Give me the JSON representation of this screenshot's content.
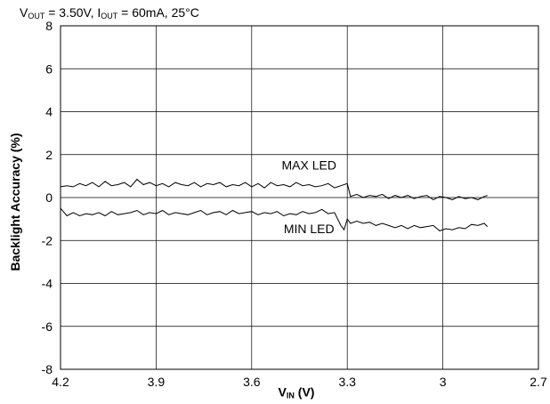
{
  "conditions": {
    "v": "V",
    "v_sub": "OUT",
    "v_rest": " = 3.50V, ",
    "i": "I",
    "i_sub": "OUT",
    "i_rest": " = 60mA, 25°C"
  },
  "axis": {
    "ylabel": "Backlight Accuracy (%)",
    "xlabel_main": "V",
    "xlabel_sub": "IN",
    "xlabel_rest": " (V)"
  },
  "chart_data": {
    "type": "line",
    "title": "",
    "xlabel": "VIN (V)",
    "ylabel": "Backlight Accuracy (%)",
    "xlim": [
      4.2,
      2.7
    ],
    "ylim": [
      -8,
      8
    ],
    "x_reversed": true,
    "grid": true,
    "xticks": [
      "4.2",
      "3.9",
      "3.6",
      "3.3",
      "3",
      "2.7"
    ],
    "xtick_values": [
      4.2,
      3.9,
      3.6,
      3.3,
      3.0,
      2.7
    ],
    "yticks": [
      "8",
      "6",
      "4",
      "2",
      "0",
      "-2",
      "-4",
      "-6",
      "-8"
    ],
    "ytick_values": [
      8,
      6,
      4,
      2,
      0,
      -2,
      -4,
      -6,
      -8
    ],
    "series": [
      {
        "name": "MAX LED",
        "color": "#000000",
        "x": [
          4.2,
          4.18,
          4.16,
          4.14,
          4.12,
          4.1,
          4.08,
          4.06,
          4.04,
          4.02,
          4.0,
          3.98,
          3.96,
          3.94,
          3.92,
          3.9,
          3.88,
          3.86,
          3.84,
          3.82,
          3.8,
          3.78,
          3.76,
          3.74,
          3.72,
          3.7,
          3.68,
          3.66,
          3.64,
          3.62,
          3.6,
          3.58,
          3.56,
          3.54,
          3.52,
          3.5,
          3.48,
          3.46,
          3.44,
          3.42,
          3.4,
          3.38,
          3.36,
          3.34,
          3.32,
          3.3,
          3.29,
          3.27,
          3.25,
          3.23,
          3.21,
          3.19,
          3.17,
          3.15,
          3.13,
          3.11,
          3.09,
          3.07,
          3.05,
          3.03,
          3.01,
          2.99,
          2.97,
          2.95,
          2.93,
          2.91,
          2.89,
          2.87,
          2.86
        ],
        "y": [
          0.5,
          0.55,
          0.5,
          0.65,
          0.55,
          0.7,
          0.5,
          0.75,
          0.55,
          0.6,
          0.7,
          0.5,
          0.85,
          0.6,
          0.7,
          0.55,
          0.65,
          0.5,
          0.7,
          0.6,
          0.55,
          0.7,
          0.5,
          0.65,
          0.6,
          0.7,
          0.5,
          0.6,
          0.55,
          0.7,
          0.5,
          0.65,
          0.45,
          0.7,
          0.55,
          0.6,
          0.5,
          0.7,
          0.55,
          0.6,
          0.5,
          0.55,
          0.65,
          0.45,
          0.55,
          0.65,
          0.05,
          0.15,
          0.0,
          0.1,
          0.05,
          0.15,
          -0.05,
          0.1,
          0.0,
          0.1,
          -0.05,
          0.05,
          0.1,
          -0.1,
          0.05,
          0.0,
          -0.1,
          0.05,
          -0.05,
          0.0,
          -0.1,
          0.05,
          0.1
        ]
      },
      {
        "name": "MIN LED",
        "color": "#000000",
        "x": [
          4.2,
          4.18,
          4.16,
          4.14,
          4.12,
          4.1,
          4.08,
          4.06,
          4.04,
          4.02,
          4.0,
          3.98,
          3.96,
          3.94,
          3.92,
          3.9,
          3.88,
          3.86,
          3.84,
          3.82,
          3.8,
          3.78,
          3.76,
          3.74,
          3.72,
          3.7,
          3.68,
          3.66,
          3.64,
          3.62,
          3.6,
          3.58,
          3.56,
          3.54,
          3.52,
          3.5,
          3.48,
          3.46,
          3.44,
          3.42,
          3.4,
          3.38,
          3.36,
          3.34,
          3.32,
          3.31,
          3.3,
          3.29,
          3.27,
          3.25,
          3.23,
          3.21,
          3.19,
          3.17,
          3.15,
          3.13,
          3.11,
          3.09,
          3.07,
          3.05,
          3.03,
          3.01,
          2.99,
          2.97,
          2.95,
          2.93,
          2.91,
          2.89,
          2.87,
          2.86
        ],
        "y": [
          -0.5,
          -0.85,
          -0.7,
          -0.85,
          -0.75,
          -0.8,
          -0.7,
          -0.85,
          -0.65,
          -0.8,
          -0.75,
          -0.7,
          -0.6,
          -0.8,
          -0.7,
          -0.75,
          -0.6,
          -0.8,
          -0.7,
          -0.75,
          -0.8,
          -0.7,
          -0.6,
          -0.8,
          -0.7,
          -0.65,
          -0.8,
          -0.6,
          -0.75,
          -0.7,
          -0.65,
          -0.8,
          -0.7,
          -0.75,
          -0.65,
          -0.85,
          -0.75,
          -0.8,
          -0.65,
          -0.75,
          -0.7,
          -0.55,
          -0.75,
          -0.7,
          -1.3,
          -1.5,
          -1.0,
          -1.2,
          -1.1,
          -1.2,
          -1.15,
          -1.3,
          -1.2,
          -1.3,
          -1.4,
          -1.3,
          -1.45,
          -1.3,
          -1.4,
          -1.35,
          -1.3,
          -1.55,
          -1.45,
          -1.5,
          -1.4,
          -1.45,
          -1.25,
          -1.3,
          -1.2,
          -1.35
        ]
      }
    ],
    "annotations": [
      {
        "text": "MAX LED",
        "x": 3.42,
        "y": 1.3
      },
      {
        "text": "MIN LED",
        "x": 3.42,
        "y": -1.65
      }
    ]
  }
}
